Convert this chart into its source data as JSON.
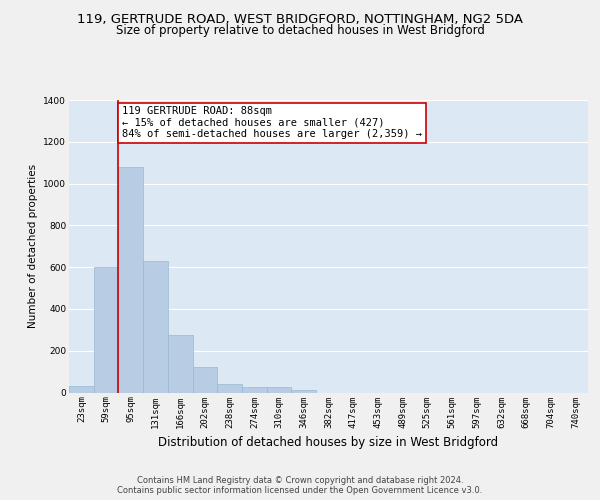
{
  "title_line1": "119, GERTRUDE ROAD, WEST BRIDGFORD, NOTTINGHAM, NG2 5DA",
  "title_line2": "Size of property relative to detached houses in West Bridgford",
  "xlabel": "Distribution of detached houses by size in West Bridgford",
  "ylabel": "Number of detached properties",
  "categories": [
    "23sqm",
    "59sqm",
    "95sqm",
    "131sqm",
    "166sqm",
    "202sqm",
    "238sqm",
    "274sqm",
    "310sqm",
    "346sqm",
    "382sqm",
    "417sqm",
    "453sqm",
    "489sqm",
    "525sqm",
    "561sqm",
    "597sqm",
    "632sqm",
    "668sqm",
    "704sqm",
    "740sqm"
  ],
  "values": [
    30,
    600,
    1080,
    630,
    275,
    120,
    40,
    25,
    25,
    10,
    0,
    0,
    0,
    0,
    0,
    0,
    0,
    0,
    0,
    0,
    0
  ],
  "bar_color": "#b8cce4",
  "bar_edge_color": "#9ab8d0",
  "ylim": [
    0,
    1400
  ],
  "yticks": [
    0,
    200,
    400,
    600,
    800,
    1000,
    1200,
    1400
  ],
  "annotation_line1": "119 GERTRUDE ROAD: 88sqm",
  "annotation_line2": "← 15% of detached houses are smaller (427)",
  "annotation_line3": "84% of semi-detached houses are larger (2,359) →",
  "annotation_box_color": "#ffffff",
  "annotation_border_color": "#cc0000",
  "vline_color": "#cc0000",
  "bg_color": "#dce9f5",
  "fig_bg_color": "#f0f0f0",
  "footer_line1": "Contains HM Land Registry data © Crown copyright and database right 2024.",
  "footer_line2": "Contains public sector information licensed under the Open Government Licence v3.0.",
  "grid_color": "#ffffff",
  "title_fontsize": 9.5,
  "subtitle_fontsize": 8.5,
  "xlabel_fontsize": 8.5,
  "ylabel_fontsize": 7.5,
  "tick_fontsize": 6.5,
  "annotation_fontsize": 7.5,
  "footer_fontsize": 6.0
}
